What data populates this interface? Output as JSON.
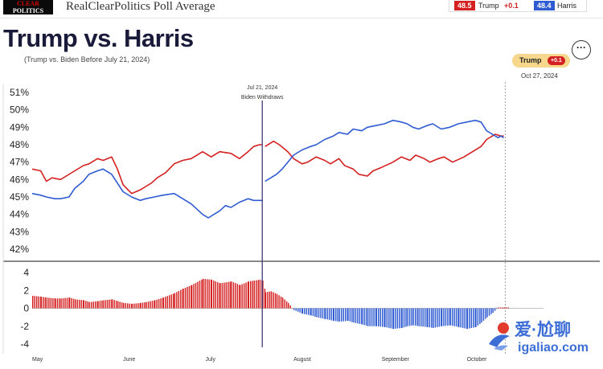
{
  "header": {
    "logo_line1": "CLEAR",
    "logo_line2": "POLITICS",
    "site_title": "RealClearPolitics Poll Average",
    "legend": {
      "trump_value": "48.5",
      "trump_name": "Trump",
      "trump_delta": "+0.1",
      "harris_value": "48.4",
      "harris_name": "Harris"
    }
  },
  "title": "Trump vs. Harris",
  "subtitle": "(Trump vs. Biden Before July 21, 2024)",
  "more_icon": "more-options-icon",
  "leader": {
    "name": "Trump",
    "delta": "+0.1",
    "date": "Oct 27, 2024"
  },
  "colors": {
    "trump": "#d42020",
    "harris": "#2f5bd2",
    "annotation": "#3d3a78"
  },
  "watermark": {
    "cn": "爱·尬聊",
    "en": "igaliao.com"
  },
  "chart_data": [
    {
      "type": "line",
      "title": "",
      "ylim": [
        41.5,
        51.2
      ],
      "yticks": [
        "51%",
        "50%",
        "49%",
        "48%",
        "47%",
        "46%",
        "45%",
        "44%",
        "43%",
        "42%"
      ],
      "xlim": [
        0,
        180
      ],
      "annotation": {
        "x": 81,
        "line1": "Jul 21, 2024",
        "line2": "Biden Withdraws"
      },
      "series": [
        {
          "name": "Trump",
          "color": "#d42020",
          "x": [
            0,
            3,
            5,
            7,
            10,
            12,
            15,
            18,
            20,
            23,
            25,
            28,
            30,
            32,
            35,
            38,
            40,
            42,
            44,
            47,
            50,
            53,
            56,
            60,
            63,
            66,
            70,
            73,
            76,
            78,
            80,
            81
          ],
          "y": [
            46.6,
            46.5,
            45.9,
            46.1,
            46.0,
            46.2,
            46.5,
            46.8,
            46.9,
            47.2,
            47.1,
            47.3,
            46.6,
            45.7,
            45.2,
            45.4,
            45.6,
            45.8,
            46.1,
            46.4,
            46.9,
            47.1,
            47.2,
            47.6,
            47.3,
            47.6,
            47.5,
            47.2,
            47.6,
            47.9,
            48.0,
            48.0
          ],
          "segment2": {
            "x": [
              82,
              85,
              87,
              90,
              92,
              95,
              97,
              100,
              103,
              105,
              108,
              110,
              113,
              115,
              118,
              120,
              123,
              127,
              130,
              133,
              135,
              138,
              140,
              143,
              145,
              148,
              152,
              155,
              158,
              160,
              163,
              165,
              166
            ],
            "y": [
              47.9,
              48.2,
              48.0,
              47.6,
              47.2,
              46.9,
              47.0,
              47.3,
              47.1,
              46.9,
              47.2,
              46.8,
              46.6,
              46.3,
              46.2,
              46.5,
              46.7,
              47.0,
              47.3,
              47.1,
              47.4,
              47.2,
              47.0,
              47.2,
              47.3,
              47.0,
              47.3,
              47.6,
              47.9,
              48.3,
              48.6,
              48.5,
              48.5
            ]
          }
        },
        {
          "name": "Harris",
          "color": "#2f5bd2",
          "x": [
            0,
            3,
            5,
            8,
            10,
            13,
            15,
            18,
            20,
            23,
            25,
            28,
            30,
            32,
            35,
            38,
            40,
            43,
            46,
            50,
            53,
            56,
            60,
            62,
            64,
            66,
            68,
            70,
            73,
            76,
            78,
            80,
            81
          ],
          "y": [
            45.2,
            45.1,
            45.0,
            44.9,
            44.9,
            45.0,
            45.5,
            45.9,
            46.3,
            46.5,
            46.6,
            46.3,
            45.8,
            45.3,
            45.0,
            44.8,
            44.9,
            45.0,
            45.1,
            45.2,
            44.9,
            44.6,
            44.0,
            43.8,
            44.0,
            44.2,
            44.5,
            44.4,
            44.7,
            44.9,
            44.8,
            44.8,
            44.8
          ],
          "segment2": {
            "x": [
              82,
              84,
              86,
              88,
              90,
              92,
              95,
              98,
              100,
              103,
              106,
              108,
              111,
              113,
              116,
              118,
              121,
              124,
              127,
              130,
              132,
              134,
              136,
              139,
              141,
              144,
              147,
              150,
              153,
              156,
              158,
              160,
              162,
              164,
              165,
              166
            ],
            "y": [
              45.9,
              46.1,
              46.3,
              46.6,
              47.0,
              47.4,
              47.7,
              47.9,
              48.0,
              48.3,
              48.5,
              48.7,
              48.6,
              48.9,
              48.8,
              49.0,
              49.1,
              49.2,
              49.4,
              49.3,
              49.2,
              49.0,
              48.9,
              49.1,
              49.2,
              48.9,
              49.0,
              49.2,
              49.3,
              49.4,
              49.3,
              48.8,
              48.6,
              48.4,
              48.5,
              48.4
            ]
          }
        }
      ]
    },
    {
      "type": "bar",
      "title": "",
      "ylim": [
        -4,
        5
      ],
      "yticks": [
        "4",
        "2",
        "0",
        "-2",
        "-4"
      ],
      "xlim": [
        0,
        180
      ],
      "categories": [
        "May",
        "June",
        "July",
        "August",
        "September",
        "October"
      ],
      "category_x": [
        0,
        32,
        61,
        92,
        123,
        153
      ],
      "series": [
        {
          "name": "Trump − Harris spread",
          "positive_color": "#d42020",
          "negative_color": "#2f5bd2",
          "x": [
            0,
            3,
            5,
            8,
            10,
            13,
            15,
            18,
            20,
            23,
            25,
            28,
            30,
            32,
            35,
            38,
            40,
            43,
            46,
            50,
            53,
            56,
            60,
            63,
            66,
            70,
            73,
            76,
            78,
            80,
            81,
            82,
            84,
            86,
            88,
            90,
            92,
            95,
            98,
            100,
            103,
            106,
            108,
            111,
            113,
            116,
            118,
            121,
            124,
            127,
            130,
            132,
            134,
            136,
            139,
            141,
            144,
            147,
            150,
            153,
            156,
            158,
            160,
            162,
            164,
            166
          ],
          "values": [
            1.4,
            1.3,
            1.2,
            1.1,
            1.1,
            1.2,
            1.0,
            0.9,
            0.7,
            0.8,
            0.9,
            1.0,
            0.8,
            0.6,
            0.5,
            0.6,
            0.7,
            0.9,
            1.2,
            1.7,
            2.2,
            2.6,
            3.3,
            3.2,
            2.8,
            3.0,
            2.6,
            3.0,
            3.1,
            3.2,
            3.1,
            1.8,
            1.9,
            1.6,
            1.2,
            0.6,
            -0.2,
            -0.6,
            -0.8,
            -1.0,
            -1.2,
            -1.4,
            -1.5,
            -1.4,
            -1.6,
            -1.8,
            -2.0,
            -2.0,
            -2.1,
            -2.3,
            -2.2,
            -2.0,
            -1.9,
            -2.0,
            -2.1,
            -2.2,
            -2.0,
            -1.9,
            -2.1,
            -2.3,
            -2.1,
            -1.6,
            -1.0,
            -0.5,
            0.1,
            0.1
          ]
        }
      ]
    }
  ]
}
